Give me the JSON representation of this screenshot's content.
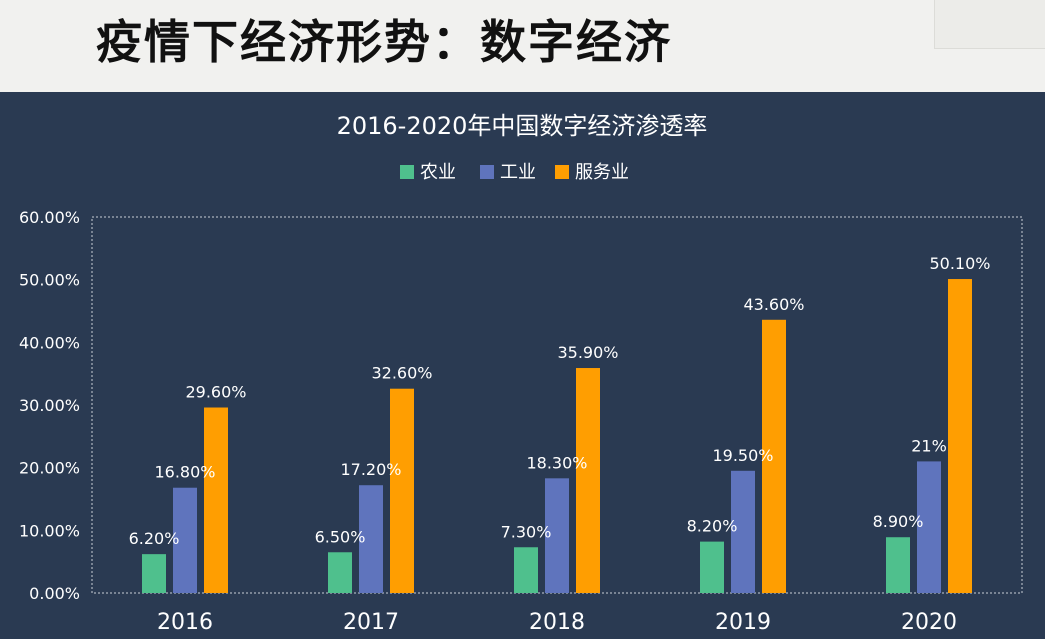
{
  "header": {
    "title": "疫情下经济形势：数字经济"
  },
  "colors": {
    "background": "#2a3a52",
    "header_background": "#f1f1ef",
    "text": "#ffffff",
    "grid": "#c8cdd6",
    "agriculture": "#4fc08d",
    "industry": "#5f74bd",
    "services": "#ff9e01"
  },
  "chart_data": {
    "type": "bar",
    "title": "2016-2020年中国数字经济渗透率",
    "categories": [
      "2016",
      "2017",
      "2018",
      "2019",
      "2020"
    ],
    "series": [
      {
        "name": "农业",
        "values": [
          6.2,
          6.5,
          7.3,
          8.2,
          8.9
        ],
        "labels": [
          "6.20%",
          "6.50%",
          "7.30%",
          "8.20%",
          "8.90%"
        ],
        "color": "#4fc08d"
      },
      {
        "name": "工业",
        "values": [
          16.8,
          17.2,
          18.3,
          19.5,
          21
        ],
        "labels": [
          "16.80%",
          "17.20%",
          "18.30%",
          "19.50%",
          "21%"
        ],
        "color": "#5f74bd"
      },
      {
        "name": "服务业",
        "values": [
          29.6,
          32.6,
          35.9,
          43.6,
          50.1
        ],
        "labels": [
          "29.60%",
          "32.60%",
          "35.90%",
          "43.60%",
          "50.10%"
        ],
        "color": "#ff9e01"
      }
    ],
    "yticks": [
      "0.00%",
      "10.00%",
      "20.00%",
      "30.00%",
      "40.00%",
      "50.00%",
      "60.00%"
    ],
    "ylim": [
      0,
      60
    ],
    "xlabel": "",
    "ylabel": "",
    "legend_position": "top-center",
    "grid": false
  }
}
